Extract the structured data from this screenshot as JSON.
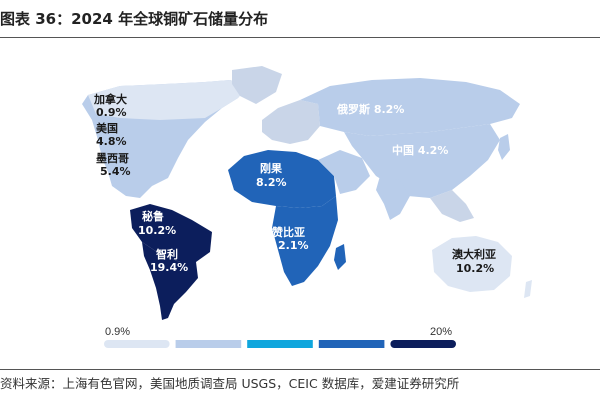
{
  "figure": {
    "title": "图表 36：2024 年全球铜矿石储量分布",
    "source": "资料来源：上海有色官网，美国地质调查局 USGS，CEIC 数据库，爱建证券研究所"
  },
  "colors": {
    "level1": "#dde6f3",
    "level2": "#b9cdea",
    "level3": "#0fa6dd",
    "level4": "#2164b8",
    "level5": "#0c1e5c",
    "grey_land": "#c9d5e8"
  },
  "chart_data": {
    "type": "choropleth-map",
    "title": "",
    "unit": "%",
    "regions": [
      {
        "name": "加拿大",
        "value": "0.9%",
        "share": 0.9
      },
      {
        "name": "美国",
        "value": "4.8%",
        "share": 4.8
      },
      {
        "name": "墨西哥",
        "value": "5.4%",
        "share": 5.4
      },
      {
        "name": "秘鲁",
        "value": "10.2%",
        "share": 10.2
      },
      {
        "name": "智利",
        "value": "19.4%",
        "share": 19.4
      },
      {
        "name": "刚果",
        "value": "8.2%",
        "share": 8.2
      },
      {
        "name": "赞比亚",
        "value": "2.1%",
        "share": 2.1
      },
      {
        "name": "俄罗斯",
        "value": "8.2%",
        "share": 8.2
      },
      {
        "name": "中国",
        "value": "4.2%",
        "share": 4.2
      },
      {
        "name": "澳大利亚",
        "value": "10.2%",
        "share": 10.2
      }
    ],
    "legend": {
      "min_label": "0.9%",
      "max_label": "20%",
      "steps": 5
    }
  }
}
